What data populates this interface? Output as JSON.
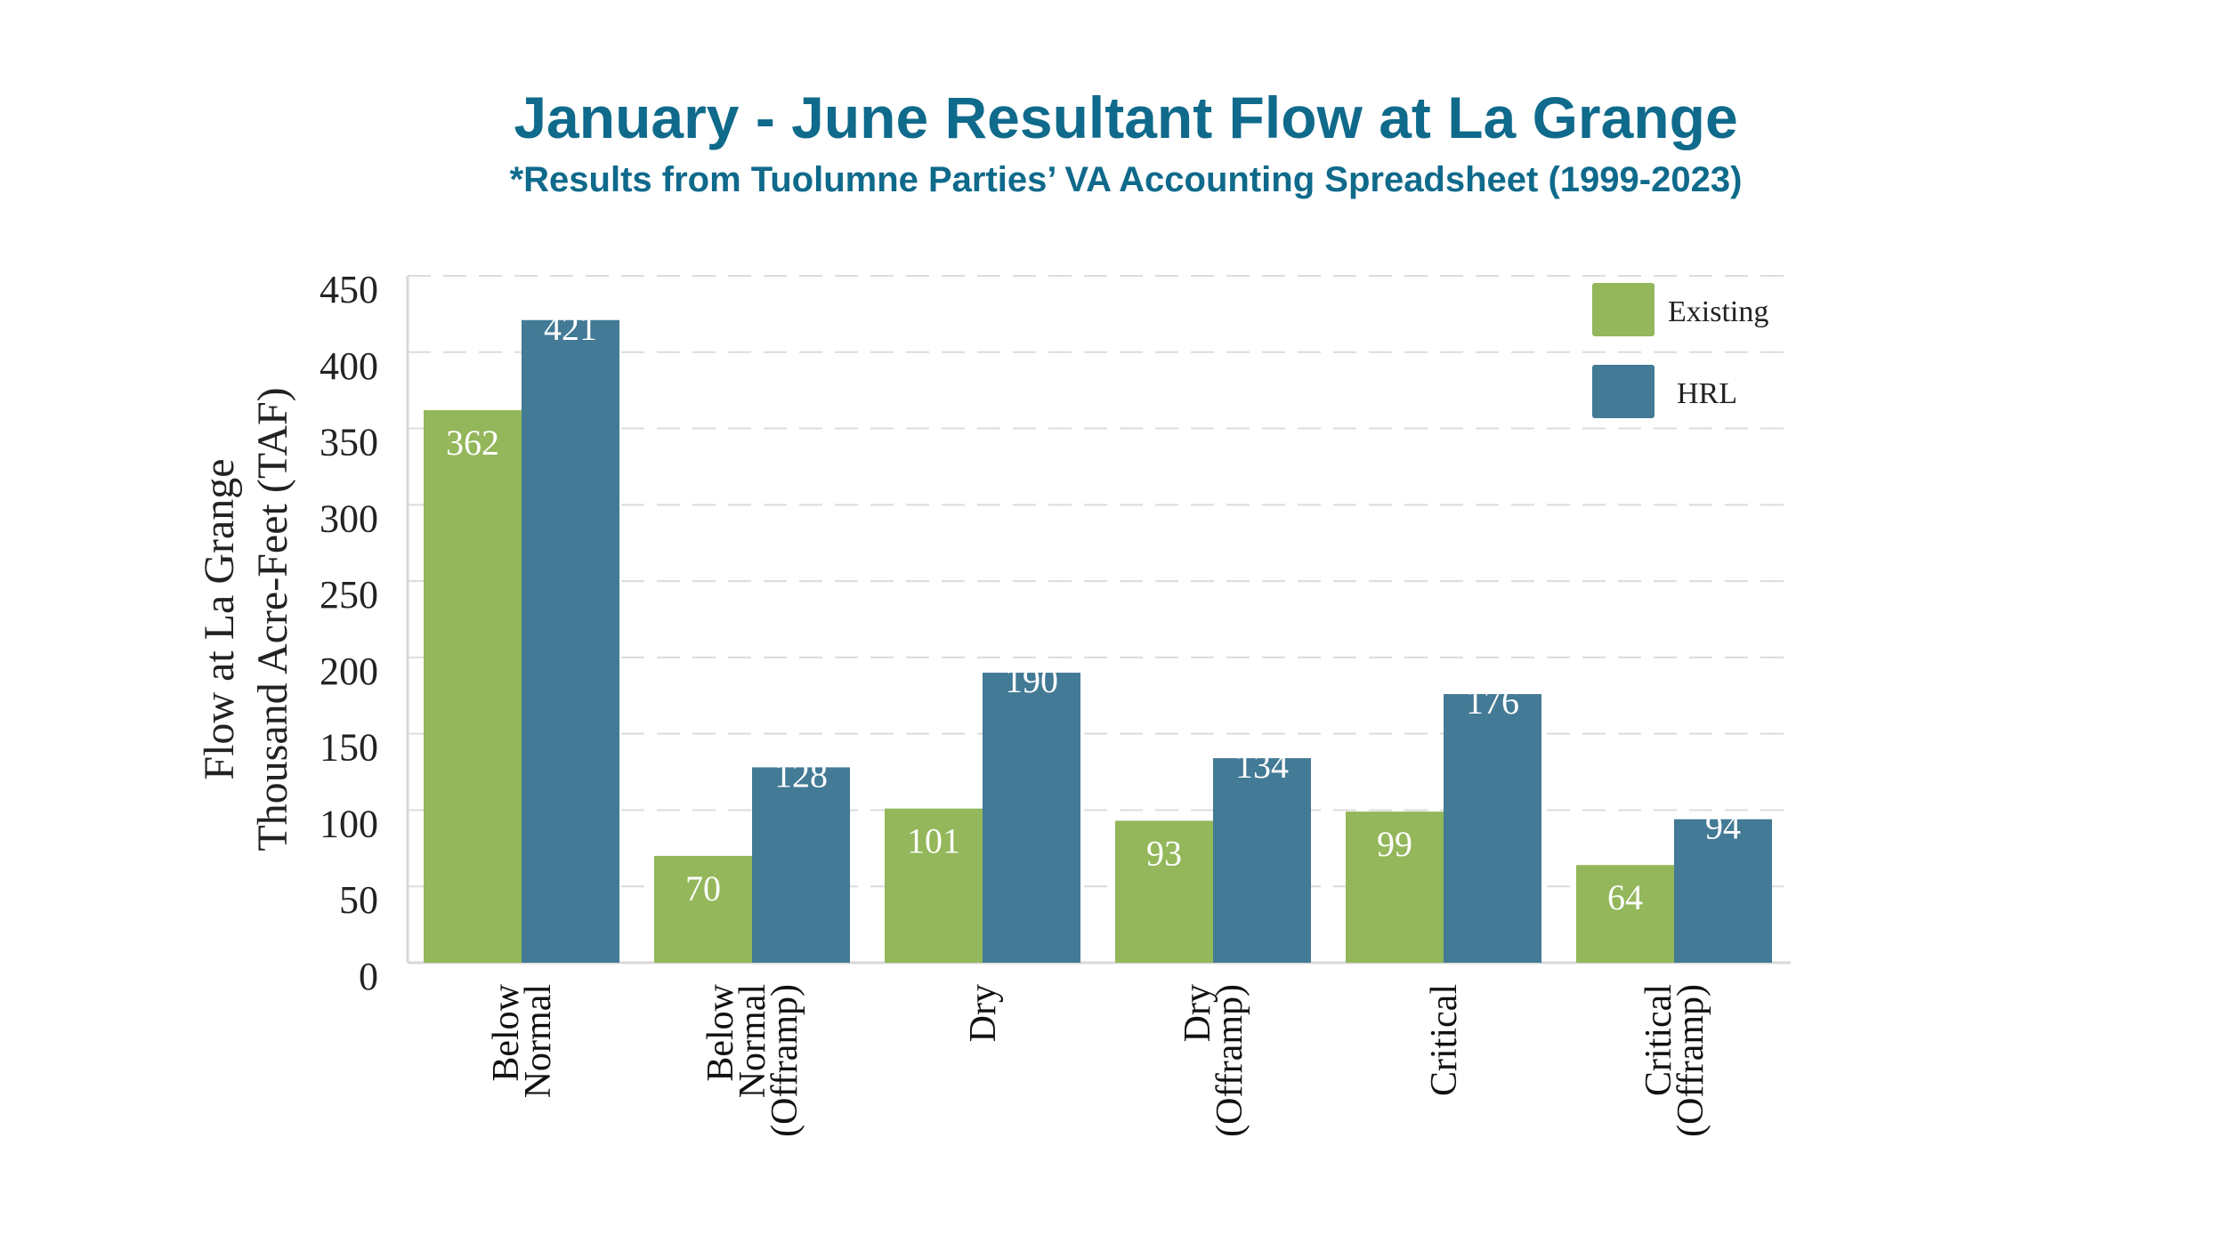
{
  "chart_data": {
    "type": "bar",
    "title": "January - June Resultant Flow at La Grange",
    "subtitle": "*Results from Tuolumne Parties’ VA Accounting Spreadsheet (1999-2023)",
    "ylabel_lines": [
      "Flow at La Grange",
      "Thousand Acre-Feet (TAF)"
    ],
    "xlabel": "",
    "ylim": [
      0,
      450
    ],
    "yticks": [
      0,
      50,
      100,
      150,
      200,
      250,
      300,
      350,
      400,
      450
    ],
    "grid": true,
    "legend_position": "top-right",
    "categories": [
      [
        "Below",
        "Normal"
      ],
      [
        "Below",
        "Normal",
        "(Offramp)"
      ],
      [
        "Dry"
      ],
      [
        "Dry",
        "(Offramp)"
      ],
      [
        "Critical"
      ],
      [
        "Critical",
        "(Offramp)"
      ]
    ],
    "series": [
      {
        "name": "Existing",
        "color": "#93b75a",
        "values": [
          362,
          70,
          101,
          93,
          99,
          64
        ]
      },
      {
        "name": "HRL",
        "color": "#437a95",
        "values": [
          421,
          128,
          190,
          134,
          176,
          94
        ]
      }
    ]
  }
}
